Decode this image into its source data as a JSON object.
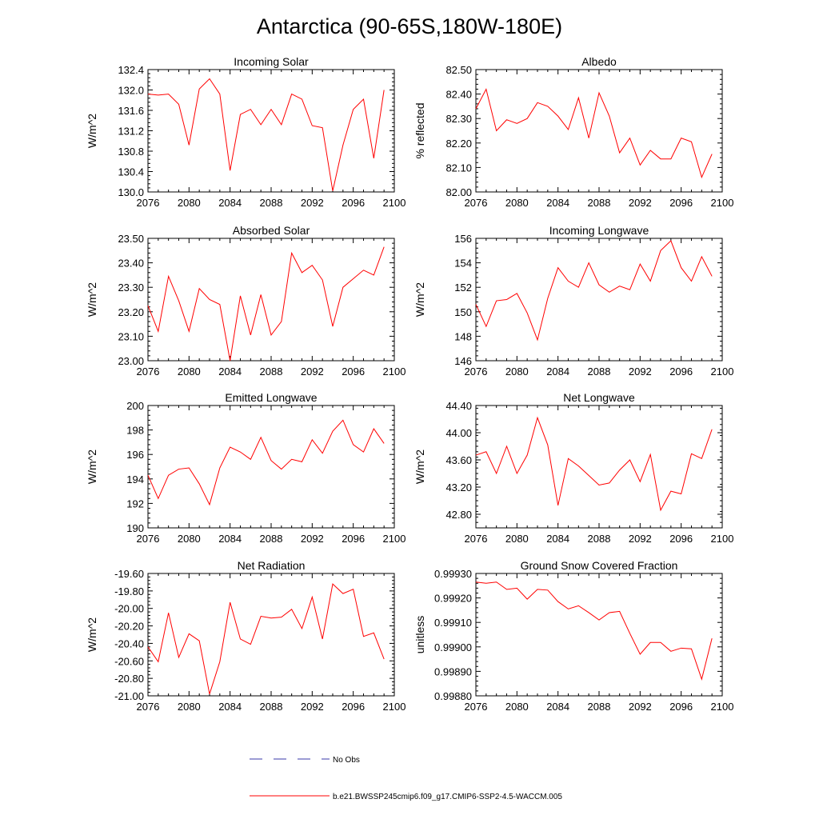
{
  "title": "Antarctica (90-65S,180W-180E)",
  "legend": {
    "obs_label": "No Obs",
    "model_label": "b.e21.BWSSP245cmip6.f09_g17.CMIP6-SSP2-4.5-WACCM.005",
    "obs_color": "#3a3aa8",
    "model_color": "#ff0000"
  },
  "chart_data": [
    {
      "type": "line",
      "title": "Incoming Solar",
      "ylabel": "W/m^2",
      "xlim": [
        2076,
        2100
      ],
      "xticks": [
        "2076",
        "2080",
        "2084",
        "2088",
        "2092",
        "2096",
        "2100"
      ],
      "ylim": [
        130.0,
        132.4
      ],
      "yticks": [
        "130.0",
        "130.4",
        "130.8",
        "131.2",
        "131.6",
        "132.0",
        "132.4"
      ],
      "x": [
        2076,
        2077,
        2078,
        2079,
        2080,
        2081,
        2082,
        2083,
        2084,
        2085,
        2086,
        2087,
        2088,
        2089,
        2090,
        2091,
        2092,
        2093,
        2094,
        2095,
        2096,
        2097,
        2098,
        2099
      ],
      "series": [
        {
          "values": [
            131.92,
            131.9,
            131.92,
            131.72,
            130.92,
            132.02,
            132.22,
            131.92,
            130.42,
            131.52,
            131.62,
            131.32,
            131.62,
            131.32,
            131.92,
            131.82,
            131.3,
            131.26,
            130.02,
            130.92,
            131.62,
            131.82,
            130.66,
            132.0
          ]
        }
      ]
    },
    {
      "type": "line",
      "title": "Albedo",
      "ylabel": "% reflected",
      "xlim": [
        2076,
        2100
      ],
      "xticks": [
        "2076",
        "2080",
        "2084",
        "2088",
        "2092",
        "2096",
        "2100"
      ],
      "ylim": [
        82.0,
        82.5
      ],
      "yticks": [
        "82.00",
        "82.10",
        "82.20",
        "82.30",
        "82.40",
        "82.50"
      ],
      "x": [
        2076,
        2077,
        2078,
        2079,
        2080,
        2081,
        2082,
        2083,
        2084,
        2085,
        2086,
        2087,
        2088,
        2089,
        2090,
        2091,
        2092,
        2093,
        2094,
        2095,
        2096,
        2097,
        2098,
        2099
      ],
      "series": [
        {
          "values": [
            82.34,
            82.42,
            82.25,
            82.295,
            82.28,
            82.3,
            82.365,
            82.35,
            82.31,
            82.255,
            82.385,
            82.22,
            82.405,
            82.31,
            82.16,
            82.22,
            82.11,
            82.17,
            82.135,
            82.135,
            82.22,
            82.205,
            82.06,
            82.155
          ]
        }
      ]
    },
    {
      "type": "line",
      "title": "Absorbed Solar",
      "ylabel": "W/m^2",
      "xlim": [
        2076,
        2100
      ],
      "xticks": [
        "2076",
        "2080",
        "2084",
        "2088",
        "2092",
        "2096",
        "2100"
      ],
      "ylim": [
        23.0,
        23.5
      ],
      "yticks": [
        "23.00",
        "23.10",
        "23.20",
        "23.30",
        "23.40",
        "23.50"
      ],
      "x": [
        2076,
        2077,
        2078,
        2079,
        2080,
        2081,
        2082,
        2083,
        2084,
        2085,
        2086,
        2087,
        2088,
        2089,
        2090,
        2091,
        2092,
        2093,
        2094,
        2095,
        2096,
        2097,
        2098,
        2099
      ],
      "series": [
        {
          "values": [
            23.225,
            23.12,
            23.345,
            23.245,
            23.12,
            23.295,
            23.25,
            23.23,
            23.0,
            23.265,
            23.105,
            23.27,
            23.105,
            23.16,
            23.44,
            23.36,
            23.39,
            23.33,
            23.14,
            23.3,
            23.335,
            23.37,
            23.35,
            23.465
          ]
        }
      ]
    },
    {
      "type": "line",
      "title": "Incoming Longwave",
      "ylabel": "W/m^2",
      "xlim": [
        2076,
        2100
      ],
      "xticks": [
        "2076",
        "2080",
        "2084",
        "2088",
        "2092",
        "2096",
        "2100"
      ],
      "ylim": [
        146,
        156
      ],
      "yticks": [
        "146",
        "148",
        "150",
        "152",
        "154",
        "156"
      ],
      "x": [
        2076,
        2077,
        2078,
        2079,
        2080,
        2081,
        2082,
        2083,
        2084,
        2085,
        2086,
        2087,
        2088,
        2089,
        2090,
        2091,
        2092,
        2093,
        2094,
        2095,
        2096,
        2097,
        2098,
        2099
      ],
      "series": [
        {
          "values": [
            150.6,
            148.8,
            150.9,
            151.0,
            151.5,
            149.9,
            147.7,
            151.1,
            153.6,
            152.5,
            152.0,
            154.0,
            152.2,
            151.6,
            152.1,
            151.8,
            153.9,
            152.5,
            155.0,
            155.8,
            153.6,
            152.5,
            154.5,
            152.9
          ]
        }
      ]
    },
    {
      "type": "line",
      "title": "Emitted Longwave",
      "ylabel": "W/m^2",
      "xlim": [
        2076,
        2100
      ],
      "xticks": [
        "2076",
        "2080",
        "2084",
        "2088",
        "2092",
        "2096",
        "2100"
      ],
      "ylim": [
        190,
        200
      ],
      "yticks": [
        "190",
        "192",
        "194",
        "196",
        "198",
        "200"
      ],
      "x": [
        2076,
        2077,
        2078,
        2079,
        2080,
        2081,
        2082,
        2083,
        2084,
        2085,
        2086,
        2087,
        2088,
        2089,
        2090,
        2091,
        2092,
        2093,
        2094,
        2095,
        2096,
        2097,
        2098,
        2099
      ],
      "series": [
        {
          "values": [
            194.3,
            192.4,
            194.3,
            194.8,
            194.9,
            193.6,
            191.9,
            194.9,
            196.6,
            196.2,
            195.6,
            197.4,
            195.5,
            194.8,
            195.6,
            195.4,
            197.2,
            196.1,
            197.9,
            198.8,
            196.8,
            196.2,
            198.1,
            196.9
          ]
        }
      ]
    },
    {
      "type": "line",
      "title": "Net Longwave",
      "ylabel": "W/m^2",
      "xlim": [
        2076,
        2100
      ],
      "xticks": [
        "2076",
        "2080",
        "2084",
        "2088",
        "2092",
        "2096",
        "2100"
      ],
      "ylim": [
        42.6,
        44.4
      ],
      "yticks": [
        "42.80",
        "43.20",
        "43.60",
        "44.00",
        "44.40"
      ],
      "x": [
        2076,
        2077,
        2078,
        2079,
        2080,
        2081,
        2082,
        2083,
        2084,
        2085,
        2086,
        2087,
        2088,
        2089,
        2090,
        2091,
        2092,
        2093,
        2094,
        2095,
        2096,
        2097,
        2098,
        2099
      ],
      "series": [
        {
          "values": [
            43.67,
            43.72,
            43.4,
            43.8,
            43.4,
            43.67,
            44.22,
            43.82,
            42.93,
            43.62,
            43.51,
            43.37,
            43.23,
            43.26,
            43.45,
            43.6,
            43.28,
            43.68,
            42.86,
            43.14,
            43.1,
            43.69,
            43.62,
            44.05
          ]
        }
      ]
    },
    {
      "type": "line",
      "title": "Net Radiation",
      "ylabel": "W/m^2",
      "xlim": [
        2076,
        2100
      ],
      "xticks": [
        "2076",
        "2080",
        "2084",
        "2088",
        "2092",
        "2096",
        "2100"
      ],
      "ylim": [
        -21.0,
        -19.6
      ],
      "yticks": [
        "-21.00",
        "-20.80",
        "-20.60",
        "-20.40",
        "-20.20",
        "-20.00",
        "-19.80",
        "-19.60"
      ],
      "x": [
        2076,
        2077,
        2078,
        2079,
        2080,
        2081,
        2082,
        2083,
        2084,
        2085,
        2086,
        2087,
        2088,
        2089,
        2090,
        2091,
        2092,
        2093,
        2094,
        2095,
        2096,
        2097,
        2098,
        2099
      ],
      "series": [
        {
          "values": [
            -20.44,
            -20.61,
            -20.05,
            -20.56,
            -20.29,
            -20.37,
            -20.98,
            -20.61,
            -19.93,
            -20.35,
            -20.41,
            -20.09,
            -20.11,
            -20.1,
            -20.01,
            -20.23,
            -19.87,
            -20.35,
            -19.72,
            -19.83,
            -19.78,
            -20.32,
            -20.28,
            -20.58
          ]
        }
      ]
    },
    {
      "type": "line",
      "title": "Ground Snow Covered Fraction",
      "ylabel": "unitless",
      "xlim": [
        2076,
        2100
      ],
      "xticks": [
        "2076",
        "2080",
        "2084",
        "2088",
        "2092",
        "2096",
        "2100"
      ],
      "ylim": [
        0.9988,
        0.9993
      ],
      "yticks": [
        "0.99880",
        "0.99890",
        "0.99900",
        "0.99910",
        "0.99920",
        "0.99930"
      ],
      "x": [
        2076,
        2077,
        2078,
        2079,
        2080,
        2081,
        2082,
        2083,
        2084,
        2085,
        2086,
        2087,
        2088,
        2089,
        2090,
        2091,
        2092,
        2093,
        2094,
        2095,
        2096,
        2097,
        2098,
        2099
      ],
      "series": [
        {
          "values": [
            0.999265,
            0.99926,
            0.999265,
            0.999235,
            0.99924,
            0.999195,
            0.999235,
            0.999232,
            0.999185,
            0.999155,
            0.999168,
            0.99914,
            0.99911,
            0.99914,
            0.999145,
            0.999055,
            0.99897,
            0.999018,
            0.999018,
            0.998982,
            0.998995,
            0.998992,
            0.998868,
            0.999035
          ]
        }
      ]
    }
  ]
}
